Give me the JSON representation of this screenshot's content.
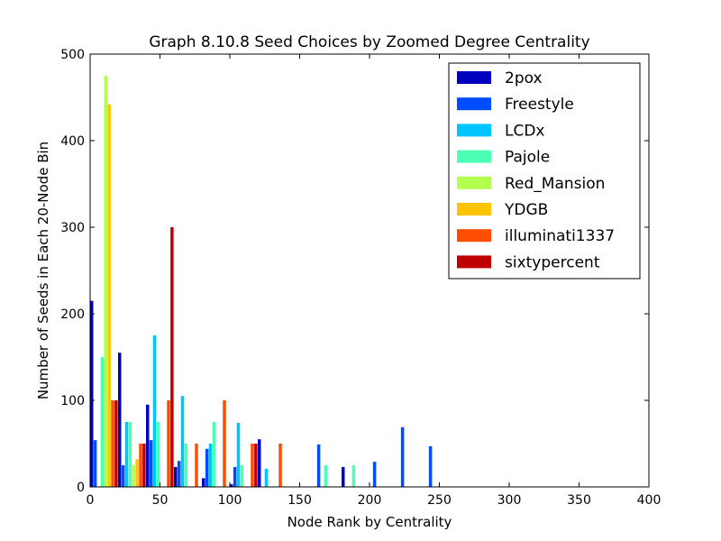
{
  "chart_data": {
    "type": "bar",
    "title": "Graph 8.10.8 Seed Choices by Zoomed Degree Centrality",
    "xlabel": "Node Rank by Centrality",
    "ylabel": "Number of Seeds in Each 20-Node Bin",
    "xlim": [
      0,
      400
    ],
    "ylim": [
      0,
      500
    ],
    "xticks": [
      "0",
      "50",
      "100",
      "150",
      "200",
      "250",
      "300",
      "350",
      "400"
    ],
    "yticks": [
      "0",
      "100",
      "200",
      "300",
      "400",
      "500"
    ],
    "bin_width": 20,
    "bin_starts": [
      0,
      20,
      40,
      60,
      80,
      100,
      120,
      140,
      160,
      180,
      200,
      220,
      240
    ],
    "legend_position": "top-right",
    "grid": false,
    "series": [
      {
        "name": "2pox",
        "color": "#0000bf",
        "values": [
          215,
          155,
          95,
          23,
          10,
          3,
          55,
          0,
          0,
          23,
          0,
          0,
          0
        ]
      },
      {
        "name": "Freestyle",
        "color": "#004dff",
        "values": [
          54,
          25,
          54,
          30,
          44,
          23,
          0,
          0,
          49,
          0,
          29,
          69,
          47
        ]
      },
      {
        "name": "LCDx",
        "color": "#00c4ff",
        "values": [
          0,
          75,
          175,
          105,
          50,
          74,
          21,
          0,
          0,
          0,
          0,
          0,
          0
        ]
      },
      {
        "name": "Pajole",
        "color": "#4dffb2",
        "values": [
          150,
          75,
          75,
          50,
          75,
          25,
          0,
          0,
          25,
          25,
          0,
          0,
          0
        ]
      },
      {
        "name": "Red_Mansion",
        "color": "#b2ff4d",
        "values": [
          475,
          25,
          0,
          0,
          0,
          0,
          0,
          0,
          0,
          0,
          0,
          0,
          0
        ]
      },
      {
        "name": "YDGB",
        "color": "#ffc400",
        "values": [
          442,
          32,
          0,
          0,
          0,
          0,
          0,
          0,
          0,
          0,
          0,
          0,
          0
        ]
      },
      {
        "name": "illuminati1337",
        "color": "#ff4d00",
        "values": [
          100,
          50,
          100,
          50,
          100,
          50,
          50,
          0,
          0,
          0,
          0,
          0,
          0
        ]
      },
      {
        "name": "sixtypercent",
        "color": "#bf0000",
        "values": [
          100,
          50,
          300,
          0,
          0,
          50,
          0,
          0,
          0,
          0,
          0,
          0,
          0
        ]
      }
    ]
  }
}
